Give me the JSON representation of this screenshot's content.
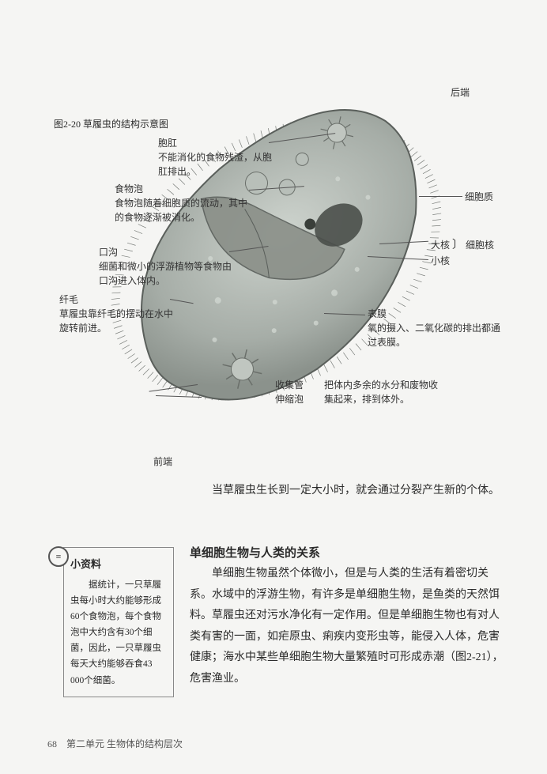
{
  "figure": {
    "caption": "图2-20  草履虫的结构示意图",
    "labels": {
      "posterior": "后端",
      "anterior": "前端",
      "anus_title": "胞肛",
      "anus_desc": "不能消化的食物残渣，从胞肛排出。",
      "food_vacuole_title": "食物泡",
      "food_vacuole_desc": "食物泡随着细胞质的流动，其中的食物逐渐被消化。",
      "oral_groove_title": "口沟",
      "oral_groove_desc": "细菌和微小的浮游植物等食物由口沟进入体内。",
      "cilia_title": "纤毛",
      "cilia_desc": "草履虫靠纤毛的摆动在水中旋转前进。",
      "cytoplasm": "细胞质",
      "macronucleus": "大核",
      "micronucleus": "小核",
      "nucleus_group": "细胞核",
      "pellicle_title": "表膜",
      "pellicle_desc": "氧的摄入、二氧化碳的排出都通过表膜。",
      "collect_tube": "收集管",
      "contractile_vacuole": "伸缩泡",
      "contractile_desc": "把体内多余的水分和废物收集起来，排到体外。"
    },
    "style": {
      "body_fill_outer": "#9fa6a0",
      "body_fill_inner": "#c5ccc6",
      "body_stroke": "#5a5f5b",
      "cilia_color": "#5a5f5b",
      "cutaway_fill": "#8a8f88",
      "nucleus_fill": "#4a4f4a",
      "vacuole_fill": "#b8bfb9",
      "vacuole_stroke": "#6a6f6a",
      "lead_color": "#555555",
      "font_size_label": 12
    }
  },
  "body_text": {
    "after_fig": "当草履虫生长到一定大小时，就会通过分裂产生新的个体。",
    "section_title": "单细胞生物与人类的关系",
    "main_para": "单细胞生物虽然个体微小，但是与人类的生活有着密切关系。水域中的浮游生物，有许多是单细胞生物，是鱼类的天然饵料。草履虫还对污水净化有一定作用。但是单细胞生物也有对人类有害的一面，如疟原虫、痢疾内变形虫等，能侵入人体，危害健康；海水中某些单细胞生物大量繁殖时可形成赤潮（图2-21），危害渔业。"
  },
  "sidebox": {
    "title": "小资料",
    "content": "据统计，一只草履虫每小时大约能够形成60个食物泡，每个食物泡中大约含有30个细菌，因此，一只草履虫每天大约能够吞食43 000个细菌。"
  },
  "footer": {
    "page_num": "68",
    "unit": "第二单元  生物体的结构层次"
  }
}
